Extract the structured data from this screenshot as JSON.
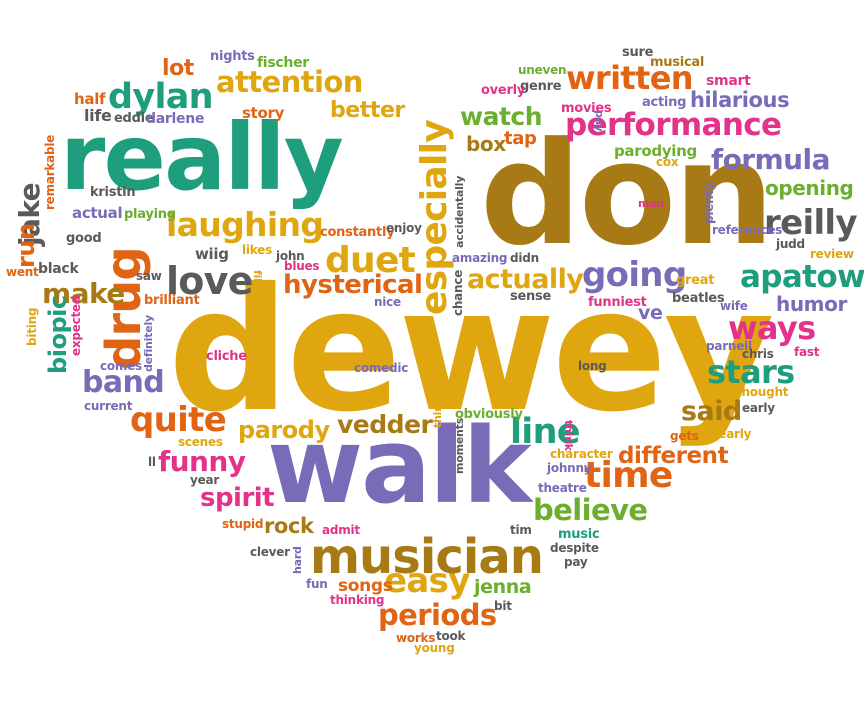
{
  "palette": {
    "teal": "#1f9e7e",
    "gold": "#e0a60f",
    "brown": "#a87a16",
    "purple": "#7a6bb8",
    "magenta": "#e2328a",
    "orange": "#e06414",
    "green": "#6cae2e",
    "gray": "#5a5a5a",
    "lightgold": "#e6b32c"
  },
  "words": [
    {
      "text": "dewey",
      "color": "gold"
    },
    {
      "text": "don",
      "color": "brown"
    },
    {
      "text": "walk",
      "color": "purple"
    },
    {
      "text": "really",
      "color": "teal"
    },
    {
      "text": "musician",
      "color": "brown"
    },
    {
      "text": "drug",
      "color": "orange"
    },
    {
      "text": "especially",
      "color": "gold"
    },
    {
      "text": "performance",
      "color": "magenta"
    },
    {
      "text": "written",
      "color": "orange"
    },
    {
      "text": "laughing",
      "color": "gold"
    },
    {
      "text": "attention",
      "color": "gold"
    },
    {
      "text": "dylan",
      "color": "teal"
    },
    {
      "text": "apatow",
      "color": "teal"
    },
    {
      "text": "formula",
      "color": "purple"
    },
    {
      "text": "reilly",
      "color": "gray"
    },
    {
      "text": "going",
      "color": "purple"
    },
    {
      "text": "duet",
      "color": "gold"
    },
    {
      "text": "love",
      "color": "gray"
    },
    {
      "text": "hysterical",
      "color": "orange"
    },
    {
      "text": "actually",
      "color": "gold"
    },
    {
      "text": "line",
      "color": "teal"
    },
    {
      "text": "time",
      "color": "orange"
    },
    {
      "text": "believe",
      "color": "green"
    },
    {
      "text": "easy",
      "color": "gold"
    },
    {
      "text": "periods",
      "color": "orange"
    },
    {
      "text": "funny",
      "color": "magenta"
    },
    {
      "text": "quite",
      "color": "orange"
    },
    {
      "text": "band",
      "color": "purple"
    },
    {
      "text": "make",
      "color": "brown"
    },
    {
      "text": "ways",
      "color": "magenta"
    },
    {
      "text": "stars",
      "color": "teal"
    },
    {
      "text": "said",
      "color": "brown"
    },
    {
      "text": "different",
      "color": "orange"
    },
    {
      "text": "vedder",
      "color": "brown"
    },
    {
      "text": "parody",
      "color": "gold"
    },
    {
      "text": "spirit",
      "color": "magenta"
    },
    {
      "text": "watch",
      "color": "green"
    },
    {
      "text": "better",
      "color": "gold"
    },
    {
      "text": "hilarious",
      "color": "purple"
    },
    {
      "text": "opening",
      "color": "green"
    },
    {
      "text": "humor",
      "color": "purple"
    },
    {
      "text": "jake",
      "color": "gray"
    },
    {
      "text": "run",
      "color": "orange"
    },
    {
      "text": "biopic",
      "color": "teal"
    },
    {
      "text": "lot",
      "color": "orange"
    },
    {
      "text": "box",
      "color": "brown"
    },
    {
      "text": "tap",
      "color": "orange"
    },
    {
      "text": "parodying",
      "color": "green"
    },
    {
      "text": "rock",
      "color": "brown"
    },
    {
      "text": "songs",
      "color": "orange"
    },
    {
      "text": "jenna",
      "color": "green"
    },
    {
      "text": "ve",
      "color": "purple"
    },
    {
      "text": "story",
      "color": "orange"
    },
    {
      "text": "life",
      "color": "gray"
    },
    {
      "text": "eddie",
      "color": "gray"
    },
    {
      "text": "darlene",
      "color": "purple"
    },
    {
      "text": "half",
      "color": "orange"
    },
    {
      "text": "nights",
      "color": "purple"
    },
    {
      "text": "fischer",
      "color": "green"
    },
    {
      "text": "sure",
      "color": "gray"
    },
    {
      "text": "musical",
      "color": "brown"
    },
    {
      "text": "uneven",
      "color": "green"
    },
    {
      "text": "genre",
      "color": "gray"
    },
    {
      "text": "overly",
      "color": "magenta"
    },
    {
      "text": "smart",
      "color": "magenta"
    },
    {
      "text": "movies",
      "color": "magenta"
    },
    {
      "text": "acting",
      "color": "purple"
    },
    {
      "text": "pay",
      "color": "purple"
    },
    {
      "text": "cox",
      "color": "gold"
    },
    {
      "text": "remarkable",
      "color": "orange"
    },
    {
      "text": "kristin",
      "color": "gray"
    },
    {
      "text": "actual",
      "color": "purple"
    },
    {
      "text": "playing",
      "color": "green"
    },
    {
      "text": "good",
      "color": "gray"
    },
    {
      "text": "went",
      "color": "orange"
    },
    {
      "text": "black",
      "color": "gray"
    },
    {
      "text": "wiig",
      "color": "gray"
    },
    {
      "text": "constantly",
      "color": "orange"
    },
    {
      "text": "enjoy",
      "color": "gray"
    },
    {
      "text": "accidentally",
      "color": "gray"
    },
    {
      "text": "likes",
      "color": "gold"
    },
    {
      "text": "john",
      "color": "gray"
    },
    {
      "text": "blues",
      "color": "magenta"
    },
    {
      "text": "films",
      "color": "gold"
    },
    {
      "text": "saw",
      "color": "gray"
    },
    {
      "text": "brilliant",
      "color": "orange"
    },
    {
      "text": "amazing",
      "color": "purple"
    },
    {
      "text": "didn",
      "color": "gray"
    },
    {
      "text": "chance",
      "color": "gray"
    },
    {
      "text": "sense",
      "color": "gray"
    },
    {
      "text": "funniest",
      "color": "magenta"
    },
    {
      "text": "plenty",
      "color": "purple"
    },
    {
      "text": "references",
      "color": "purple"
    },
    {
      "text": "judd",
      "color": "gray"
    },
    {
      "text": "review",
      "color": "gold"
    },
    {
      "text": "great",
      "color": "gold"
    },
    {
      "text": "beatles",
      "color": "gray"
    },
    {
      "text": "wife",
      "color": "purple"
    },
    {
      "text": "man",
      "color": "magenta"
    },
    {
      "text": "biting",
      "color": "gold"
    },
    {
      "text": "expected",
      "color": "magenta"
    },
    {
      "text": "definitely",
      "color": "purple"
    },
    {
      "text": "comes",
      "color": "purple"
    },
    {
      "text": "current",
      "color": "purple"
    },
    {
      "text": "nice",
      "color": "purple"
    },
    {
      "text": "cliche",
      "color": "magenta"
    },
    {
      "text": "comedic",
      "color": "purple"
    },
    {
      "text": "long",
      "color": "gray"
    },
    {
      "text": "parnell",
      "color": "purple"
    },
    {
      "text": "chris",
      "color": "gray"
    },
    {
      "text": "fast",
      "color": "magenta"
    },
    {
      "text": "thought",
      "color": "gold"
    },
    {
      "text": "early",
      "color": "gray"
    },
    {
      "text": "nearly",
      "color": "gold"
    },
    {
      "text": "gets",
      "color": "orange"
    },
    {
      "text": "thing",
      "color": "gold"
    },
    {
      "text": "obviously",
      "color": "green"
    },
    {
      "text": "moments",
      "color": "gray"
    },
    {
      "text": "think",
      "color": "magenta"
    },
    {
      "text": "character",
      "color": "gold"
    },
    {
      "text": "johnny",
      "color": "purple"
    },
    {
      "text": "theatre",
      "color": "purple"
    },
    {
      "text": "scenes",
      "color": "gold"
    },
    {
      "text": "year",
      "color": "gray"
    },
    {
      "text": "ll",
      "color": "gray"
    },
    {
      "text": "stupid",
      "color": "orange"
    },
    {
      "text": "admit",
      "color": "magenta"
    },
    {
      "text": "tim",
      "color": "gray"
    },
    {
      "text": "clever",
      "color": "gray"
    },
    {
      "text": "hard",
      "color": "purple"
    },
    {
      "text": "fun",
      "color": "purple"
    },
    {
      "text": "thinking",
      "color": "magenta"
    },
    {
      "text": "music",
      "color": "teal"
    },
    {
      "text": "despite",
      "color": "gray"
    },
    {
      "text": "pay",
      "color": "gray"
    },
    {
      "text": "works",
      "color": "orange"
    },
    {
      "text": "took",
      "color": "gray"
    },
    {
      "text": "young",
      "color": "gold"
    },
    {
      "text": "bit",
      "color": "gray"
    }
  ]
}
